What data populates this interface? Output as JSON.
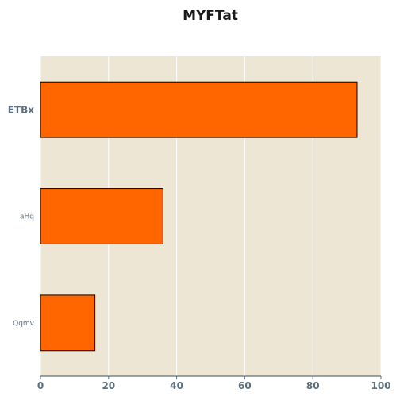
{
  "chart_data": {
    "type": "bar",
    "orientation": "horizontal",
    "title": "MYFTat",
    "xlabel": "",
    "ylabel": "",
    "categories": [
      "ETBx",
      "aHq",
      "Qqmv"
    ],
    "values": [
      93,
      36,
      16
    ],
    "xlim": [
      0,
      100
    ],
    "x_ticks": [
      "0",
      "20",
      "40",
      "60",
      "80",
      "100"
    ],
    "grid": true,
    "legend": "none",
    "colors": {
      "bar": "#ff6600",
      "bar_edge": "#000000",
      "plot_bg": "#ede6d5",
      "grid": "#ffffff",
      "axis": "#5a7080"
    }
  }
}
